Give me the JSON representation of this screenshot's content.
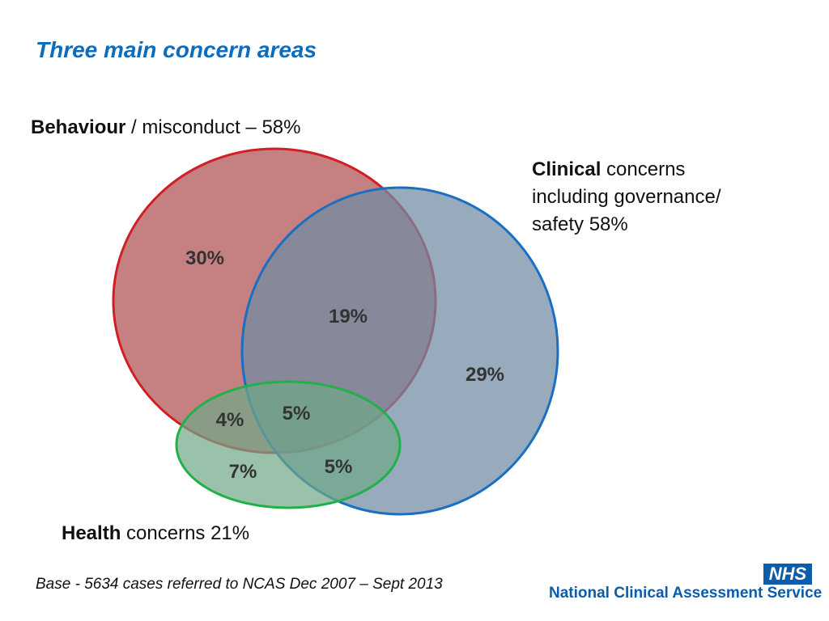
{
  "title": "Three main concern areas",
  "sets": {
    "behaviour": {
      "bold": "Behaviour",
      "rest": " / misconduct – 58%"
    },
    "clinical": {
      "bold": "Clinical",
      "rest_line1": " concerns",
      "line2": "including governance/",
      "line3": "safety 58%"
    },
    "health": {
      "bold": "Health",
      "rest": " concerns 21%"
    }
  },
  "regions": {
    "behaviour_only": "30%",
    "behaviour_clinical": "19%",
    "clinical_only": "29%",
    "behaviour_health": "4%",
    "all_three": "5%",
    "health_only": "7%",
    "clinical_health": "5%"
  },
  "colors": {
    "behaviour_fill": "#b86566",
    "behaviour_stroke": "#d21f26",
    "clinical_fill": "#6f8aa3",
    "clinical_stroke": "#1a6fc2",
    "health_fill": "#6fa888",
    "health_stroke": "#22b04b"
  },
  "footer": "Base - 5634 cases referred to NCAS Dec 2007 – Sept 2013",
  "logo": {
    "nhs": "NHS",
    "org": "National Clinical Assessment Service"
  }
}
